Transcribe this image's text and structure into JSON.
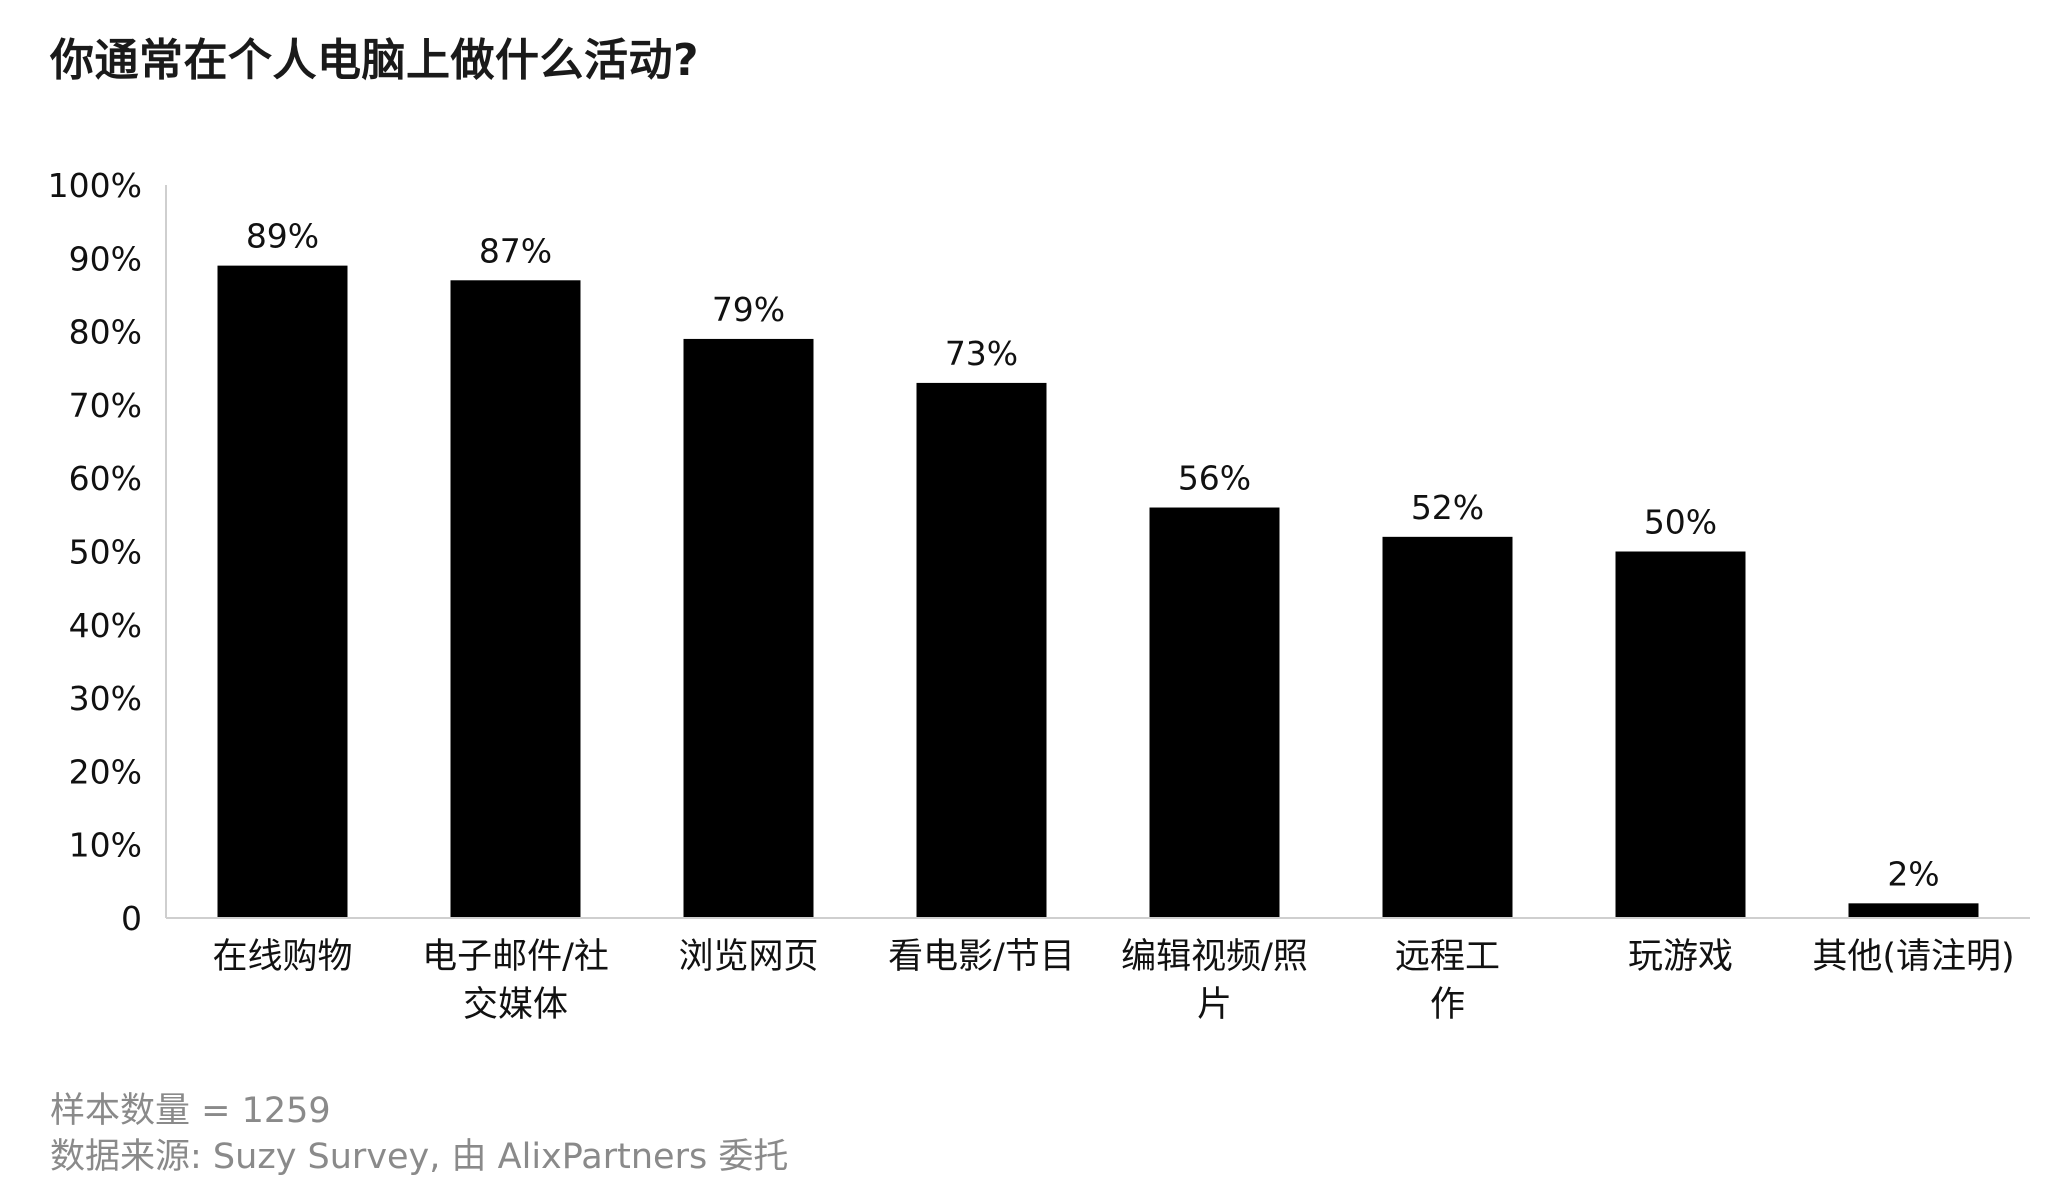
{
  "title": "你通常在个人电脑上做什么活动?",
  "chart_data": {
    "type": "bar",
    "categories": [
      [
        "在线购物"
      ],
      [
        "电子邮件/社",
        "交媒体"
      ],
      [
        "浏览网页"
      ],
      [
        "看电影/节目"
      ],
      [
        "编辑视频/照",
        "片"
      ],
      [
        "远程工",
        "作"
      ],
      [
        "玩游戏"
      ],
      [
        "其他(请注明)"
      ]
    ],
    "values": [
      89,
      87,
      79,
      73,
      56,
      52,
      50,
      2
    ],
    "data_labels": [
      "89%",
      "87%",
      "79%",
      "73%",
      "56%",
      "52%",
      "50%",
      "2%"
    ],
    "y_ticks": [
      "0",
      "10%",
      "20%",
      "30%",
      "40%",
      "50%",
      "60%",
      "70%",
      "80%",
      "90%",
      "100%"
    ],
    "ylim": [
      0,
      100
    ],
    "grid": false,
    "bar_color": "#000000",
    "axis_color": "#cfcfcf"
  },
  "footer": {
    "sample_size": "样本数量 = 1259",
    "source": "数据来源: Suzy Survey, 由 AlixPartners 委托"
  }
}
